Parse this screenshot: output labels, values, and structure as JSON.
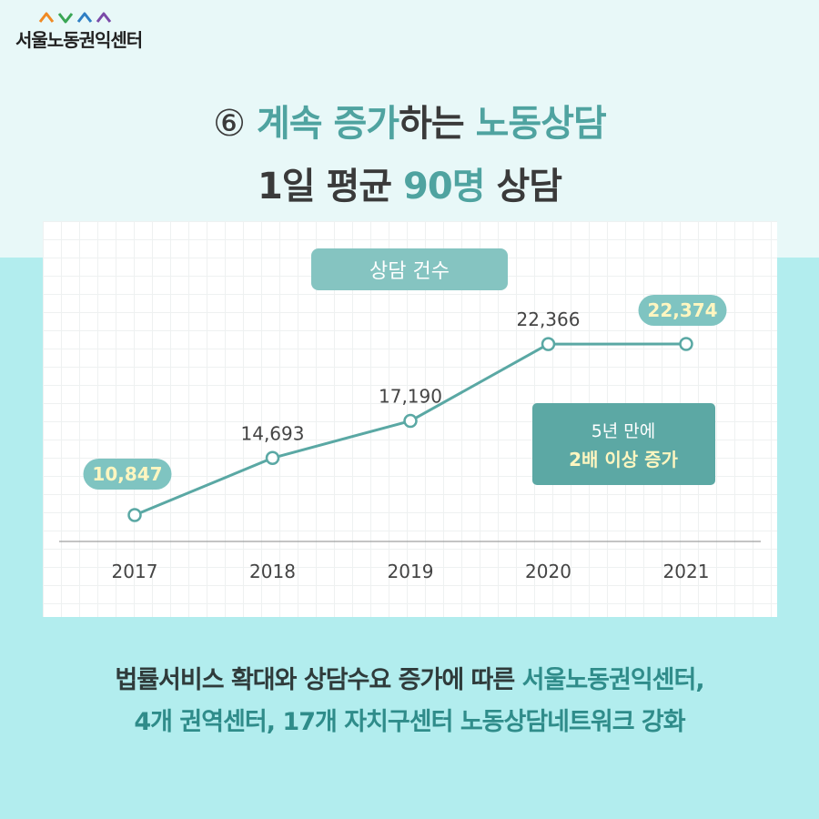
{
  "header": {
    "logo_text": "서울노동권익센터",
    "title_line1": {
      "num": "⑥",
      "accent_a": "계속 증가",
      "plain": "하는 ",
      "accent_b": "노동상담"
    },
    "title_line2": {
      "plain_a": "1일 평균 ",
      "accent": "90명",
      "plain_b": " 상담"
    }
  },
  "chart_data": {
    "type": "line",
    "title": "상담 건수",
    "categories": [
      "2017",
      "2018",
      "2019",
      "2020",
      "2021"
    ],
    "values": [
      10847,
      14693,
      17190,
      22366,
      22374
    ],
    "value_labels": [
      "10,847",
      "14,693",
      "17,190",
      "22,366",
      "22,374"
    ],
    "highlighted": [
      true,
      false,
      false,
      false,
      true
    ],
    "grid": true,
    "annotation": {
      "line1": "5년 만에",
      "line2": "2배 이상 증가"
    },
    "colors": {
      "line": "#5aa8a4",
      "badge": "#7fc4c1",
      "highlight_text": "#fff6c0",
      "annotation_bg": "#5ca8a4"
    }
  },
  "footer": {
    "line1": {
      "plain": "법률서비스 확대와 상담수요 증가에 따른 ",
      "accent": "서울노동권익센터,"
    },
    "line2": {
      "accent": "4개 권역센터, 17개 자치구센터 노동상담네트워크 강화"
    }
  }
}
